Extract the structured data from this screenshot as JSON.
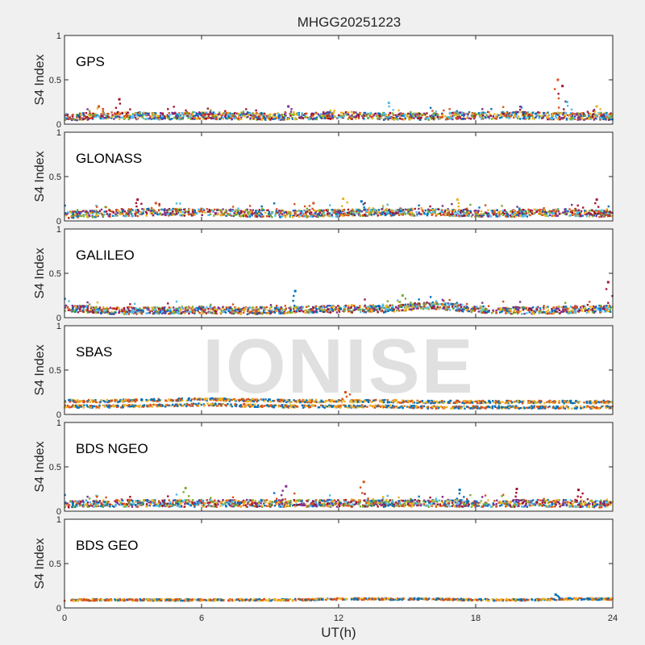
{
  "chart_data": {
    "title": "MHGG20251223",
    "type": "scatter",
    "xlabel": "UT(h)",
    "ylabel": "S4 Index",
    "xlim": [
      0,
      24
    ],
    "ylim": [
      0,
      1
    ],
    "xticks": [
      "0",
      "6",
      "12",
      "18",
      "24"
    ],
    "yticks": [
      "0",
      "0.5",
      "1"
    ],
    "watermark": "IONISE",
    "colors": [
      "#0072BD",
      "#D95319",
      "#EDB120",
      "#7E2F8E",
      "#77AC30",
      "#4DBEEE",
      "#A2142F"
    ],
    "panels": [
      {
        "name": "GPS",
        "baseline": [
          0.07,
          0.09,
          0.08,
          0.09,
          0.08,
          0.08,
          0.09,
          0.08,
          0.08,
          0.09,
          0.09,
          0.08,
          0.08
        ],
        "peaks": [
          [
            1.5,
            0.2
          ],
          [
            2.4,
            0.28
          ],
          [
            9.8,
            0.2
          ],
          [
            14.2,
            0.24
          ],
          [
            21.6,
            0.5
          ],
          [
            21.8,
            0.43
          ],
          [
            22.0,
            0.25
          ],
          [
            23.3,
            0.2
          ]
        ]
      },
      {
        "name": "GLONASS",
        "baseline": [
          0.06,
          0.08,
          0.09,
          0.09,
          0.08,
          0.07,
          0.08,
          0.09,
          0.09,
          0.08,
          0.08,
          0.09,
          0.07
        ],
        "peaks": [
          [
            3.2,
            0.24
          ],
          [
            4.0,
            0.2
          ],
          [
            10.9,
            0.2
          ],
          [
            12.2,
            0.25
          ],
          [
            13.0,
            0.22
          ],
          [
            17.2,
            0.24
          ],
          [
            23.3,
            0.24
          ]
        ]
      },
      {
        "name": "GALILEO",
        "baseline": [
          0.1,
          0.07,
          0.07,
          0.08,
          0.07,
          0.08,
          0.09,
          0.09,
          0.13,
          0.09,
          0.07,
          0.08,
          0.09
        ],
        "peaks": [
          [
            10.1,
            0.3
          ],
          [
            14.8,
            0.25
          ],
          [
            23.8,
            0.4
          ]
        ]
      },
      {
        "name": "SBAS",
        "baseline": [
          0.15,
          0.15,
          0.16,
          0.17,
          0.16,
          0.15,
          0.15,
          0.15,
          0.14,
          0.14,
          0.14,
          0.14,
          0.14
        ],
        "peaks": [
          [
            12.3,
            0.25
          ]
        ]
      },
      {
        "name": "BDS NGEO",
        "baseline": [
          0.07,
          0.08,
          0.08,
          0.08,
          0.08,
          0.08,
          0.08,
          0.08,
          0.08,
          0.08,
          0.08,
          0.08,
          0.07
        ],
        "peaks": [
          [
            5.3,
            0.26
          ],
          [
            9.7,
            0.28
          ],
          [
            13.1,
            0.33
          ],
          [
            17.3,
            0.24
          ],
          [
            19.8,
            0.25
          ],
          [
            22.5,
            0.24
          ]
        ]
      },
      {
        "name": "BDS GEO",
        "baseline": [
          0.09,
          0.09,
          0.09,
          0.09,
          0.09,
          0.09,
          0.1,
          0.1,
          0.1,
          0.09,
          0.09,
          0.1,
          0.1
        ],
        "peaks": [
          [
            21.5,
            0.15
          ]
        ]
      }
    ]
  }
}
